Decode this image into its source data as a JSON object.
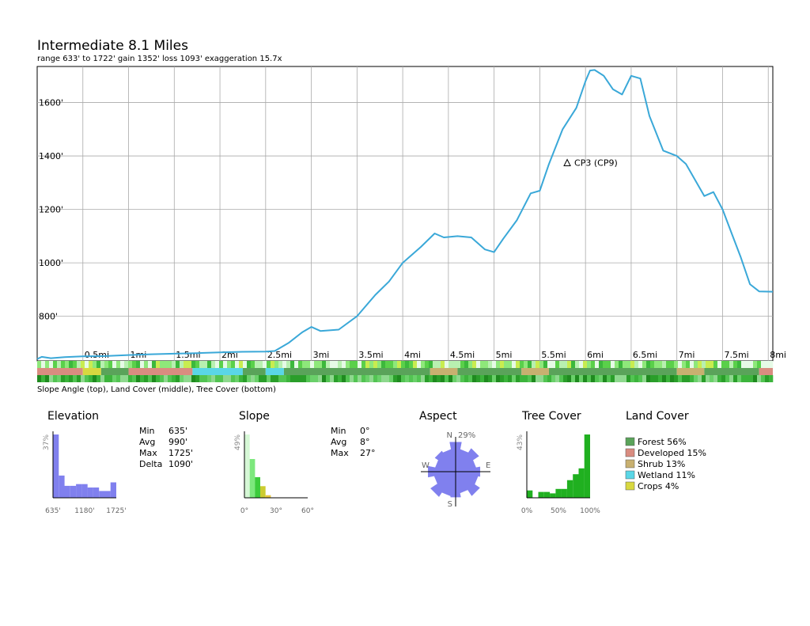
{
  "page": {
    "title": "Intermediate 8.1 Miles",
    "subtitle": "range 633' to 1722'  gain 1352'  loss 1093'  exaggeration 15.7x",
    "strip_caption": "Slope Angle (top), Land Cover (middle), Tree Cover (bottom)"
  },
  "chart_data": [
    {
      "type": "line",
      "name": "elevation-profile",
      "x_unit": "mi",
      "y_unit": "ft",
      "xlim": [
        0,
        8.05
      ],
      "ylim": [
        633,
        1735
      ],
      "x_ticks": [
        0.5,
        1,
        1.5,
        2,
        2.5,
        3,
        3.5,
        4,
        4.5,
        5,
        5.5,
        6,
        6.5,
        7,
        7.5,
        8
      ],
      "x_tick_labels": [
        "0.5mi",
        "1mi",
        "1.5mi",
        "2mi",
        "2.5mi",
        "3mi",
        "3.5mi",
        "4mi",
        "4.5mi",
        "5mi",
        "5.5mi",
        "6mi",
        "6.5mi",
        "7mi",
        "7.5mi",
        "8mi"
      ],
      "y_ticks": [
        800,
        1000,
        1200,
        1400,
        1600
      ],
      "y_tick_labels": [
        "800'",
        "1000'",
        "1200'",
        "1400'",
        "1600'"
      ],
      "grid": true,
      "color": "#3aa8d8",
      "x": [
        0,
        0.05,
        0.15,
        0.3,
        0.5,
        0.75,
        1.0,
        1.25,
        1.5,
        1.75,
        2.0,
        2.25,
        2.5,
        2.6,
        2.75,
        2.9,
        3.0,
        3.1,
        3.3,
        3.5,
        3.7,
        3.85,
        4.0,
        4.2,
        4.35,
        4.45,
        4.6,
        4.75,
        4.9,
        5.0,
        5.1,
        5.25,
        5.4,
        5.5,
        5.6,
        5.75,
        5.9,
        6.0,
        6.05,
        6.1,
        6.2,
        6.3,
        6.4,
        6.5,
        6.6,
        6.7,
        6.85,
        7.0,
        7.1,
        7.2,
        7.3,
        7.4,
        7.5,
        7.6,
        7.7,
        7.8,
        7.9,
        8.05
      ],
      "y": [
        640,
        648,
        643,
        647,
        650,
        651,
        655,
        658,
        660,
        662,
        665,
        667,
        668,
        670,
        700,
        740,
        760,
        745,
        750,
        800,
        880,
        930,
        1000,
        1060,
        1110,
        1095,
        1100,
        1095,
        1050,
        1040,
        1090,
        1160,
        1260,
        1270,
        1370,
        1500,
        1580,
        1680,
        1720,
        1722,
        1700,
        1650,
        1630,
        1700,
        1690,
        1550,
        1420,
        1400,
        1370,
        1310,
        1250,
        1265,
        1200,
        1110,
        1020,
        920,
        893,
        892
      ],
      "annotations": [
        {
          "label": "CP3 (CP9)",
          "x": 5.8,
          "y": 1375,
          "marker": "triangle"
        }
      ]
    },
    {
      "type": "heatmap",
      "name": "slope-land-tree-strips",
      "rows": [
        "Slope Angle",
        "Land Cover",
        "Tree Cover"
      ],
      "land_cover_segments": [
        {
          "from": 0,
          "to": 0.5,
          "class": "Developed"
        },
        {
          "from": 0.5,
          "to": 0.7,
          "class": "Crops"
        },
        {
          "from": 0.7,
          "to": 1.0,
          "class": "Forest"
        },
        {
          "from": 1.0,
          "to": 1.7,
          "class": "Developed"
        },
        {
          "from": 1.7,
          "to": 2.25,
          "class": "Wetland"
        },
        {
          "from": 2.25,
          "to": 2.5,
          "class": "Forest"
        },
        {
          "from": 2.5,
          "to": 2.7,
          "class": "Wetland"
        },
        {
          "from": 2.7,
          "to": 4.3,
          "class": "Forest"
        },
        {
          "from": 4.3,
          "to": 4.6,
          "class": "Shrub"
        },
        {
          "from": 4.6,
          "to": 5.3,
          "class": "Forest"
        },
        {
          "from": 5.3,
          "to": 5.6,
          "class": "Shrub"
        },
        {
          "from": 5.6,
          "to": 7.0,
          "class": "Forest"
        },
        {
          "from": 7.0,
          "to": 7.3,
          "class": "Shrub"
        },
        {
          "from": 7.3,
          "to": 7.9,
          "class": "Forest"
        },
        {
          "from": 7.9,
          "to": 8.05,
          "class": "Developed"
        }
      ]
    },
    {
      "type": "bar",
      "name": "elevation-histogram",
      "title": "Elevation",
      "peak_label": "37%",
      "x_tick_labels": [
        "635'",
        "1180'",
        "1725'"
      ],
      "values": [
        37,
        13,
        7,
        7,
        8,
        8,
        6,
        6,
        4,
        4,
        9
      ],
      "color": "#8080ee",
      "stats": {
        "labels": [
          "Min",
          "Avg",
          "Max",
          "Delta"
        ],
        "values": [
          "635'",
          "990'",
          "1725'",
          "1090'"
        ]
      }
    },
    {
      "type": "bar",
      "name": "slope-histogram",
      "title": "Slope",
      "peak_label": "49%",
      "x_tick_labels": [
        "0°",
        "30°",
        "60°"
      ],
      "values": [
        49,
        30,
        16,
        9,
        2,
        0,
        0,
        0,
        0,
        0,
        0,
        0
      ],
      "colors": [
        "#d6f8d6",
        "#7de87d",
        "#3ccc3c",
        "#cccc30",
        "#e8c840"
      ],
      "stats": {
        "labels": [
          "Min",
          "Avg",
          "Max"
        ],
        "values": [
          "0°",
          "8°",
          "27°"
        ]
      }
    },
    {
      "type": "rose",
      "name": "aspect-rose",
      "title": "Aspect",
      "max_label": "29%",
      "directions": [
        "N",
        "E",
        "S",
        "W"
      ],
      "sector_values": [
        29,
        22,
        27,
        20,
        24,
        22,
        28,
        21,
        25,
        24,
        29,
        21,
        27,
        20,
        24,
        22
      ],
      "color": "#8080ee"
    },
    {
      "type": "bar",
      "name": "tree-cover-histogram",
      "title": "Tree Cover",
      "peak_label": "43%",
      "x_tick_labels": [
        "0%",
        "50%",
        "100%"
      ],
      "values": [
        5,
        0,
        4,
        4,
        3,
        6,
        6,
        12,
        16,
        20,
        43
      ],
      "color": "#20b020"
    },
    {
      "type": "pie",
      "name": "land-cover-legend",
      "title": "Land Cover",
      "categories": [
        "Forest 56%",
        "Developed 15%",
        "Shrub 13%",
        "Wetland 11%",
        "Crops 4%"
      ],
      "values": [
        56,
        15,
        13,
        11,
        4
      ],
      "colors": [
        "#5aa35a",
        "#d98c80",
        "#c8b070",
        "#5ad6e6",
        "#d8d840"
      ]
    }
  ]
}
